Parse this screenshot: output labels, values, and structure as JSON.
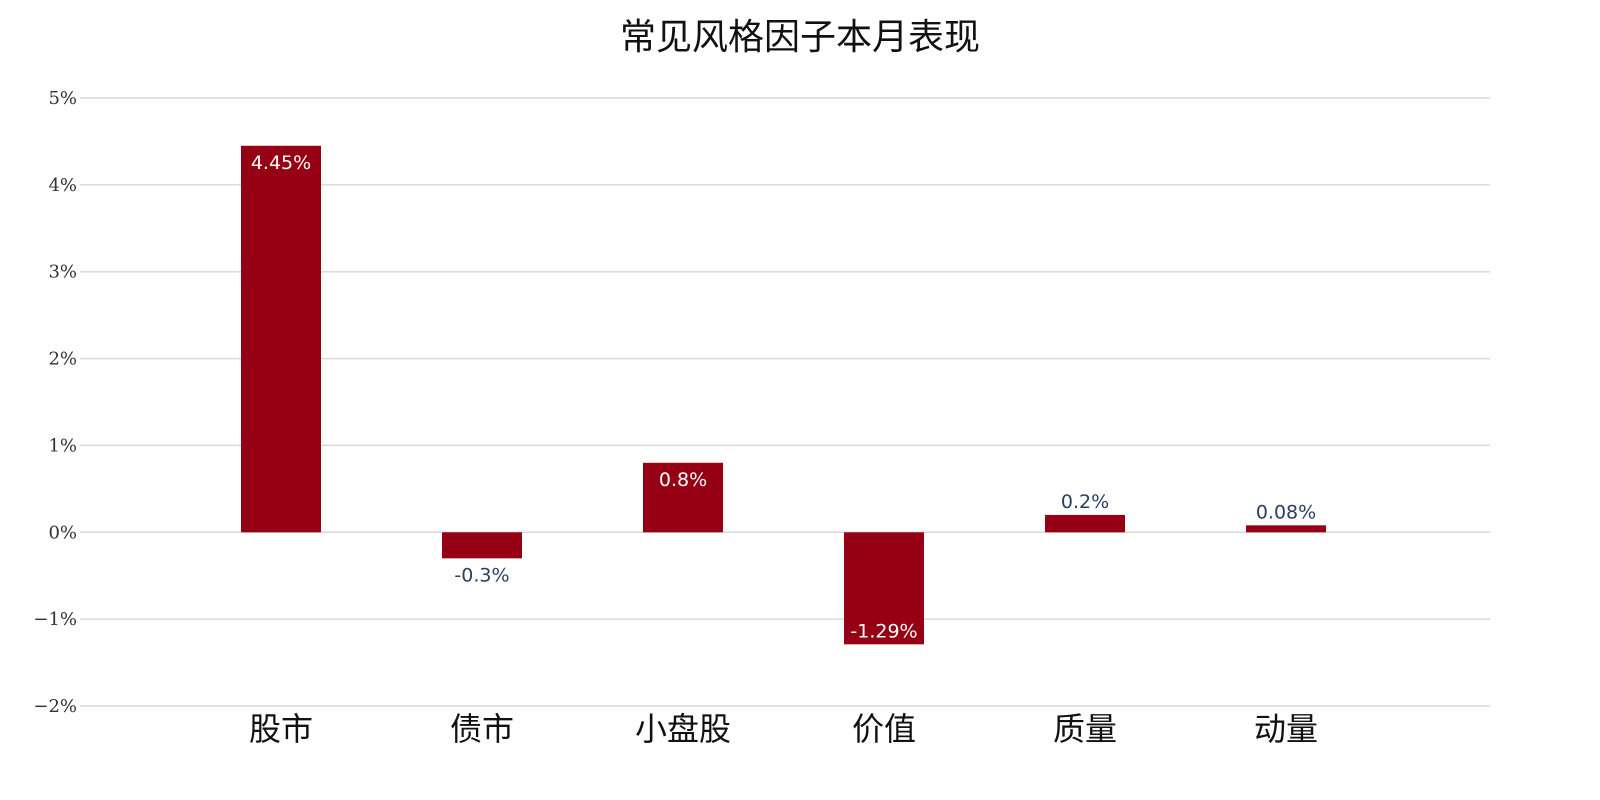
{
  "chart_data": {
    "type": "bar",
    "title": "常见风格因子本月表现",
    "xlabel": "",
    "ylabel": "",
    "categories": [
      "股市",
      "债市",
      "小盘股",
      "价值",
      "质量",
      "动量"
    ],
    "values": [
      4.45,
      -0.3,
      0.8,
      -1.29,
      0.2,
      0.08
    ],
    "data_labels": [
      "4.45%",
      "-0.3%",
      "0.8%",
      "-1.29%",
      "0.2%",
      "0.08%"
    ],
    "ylim": [
      -2,
      5
    ],
    "yticks": [
      {
        "value": 5,
        "label": "5%"
      },
      {
        "value": 4,
        "label": "4%"
      },
      {
        "value": 3,
        "label": "3%"
      },
      {
        "value": 2,
        "label": "2%"
      },
      {
        "value": 1,
        "label": "1%"
      },
      {
        "value": 0,
        "label": "0%"
      },
      {
        "value": -1,
        "label": "−1%"
      },
      {
        "value": -2,
        "label": "−2%"
      }
    ],
    "grid": true,
    "legend": "none",
    "colors": {
      "bar": "#950014",
      "label_inside": "#ffffff",
      "label_outside": "#2a3f5f",
      "grid": "#d9d9d9"
    }
  }
}
